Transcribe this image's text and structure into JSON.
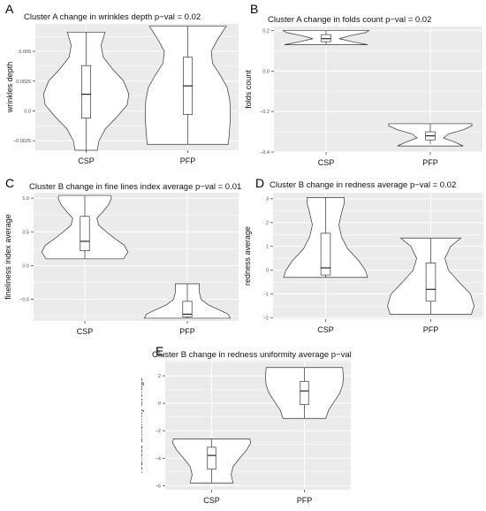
{
  "chart_data": [
    {
      "panel": "A",
      "type": "violin",
      "title": "Cluster A change in wrinkles depth  p−val = 0.02",
      "ylabel": "wrinkles depth",
      "categories": [
        "CSP",
        "PFP"
      ],
      "ylim": [
        -0.0033,
        0.0073
      ],
      "yticks": [
        -0.0025,
        0.0,
        0.0025,
        0.005
      ],
      "ytick_labels": [
        "−0.0025",
        "0.0",
        "0.0025",
        "0.005"
      ],
      "grid": true,
      "series": [
        {
          "category": "CSP",
          "box": {
            "q1": -0.0006,
            "median": 0.0014,
            "q3": 0.0038,
            "whisker_low": -0.0033,
            "whisker_high": 0.0066
          },
          "violin": [
            [
              -0.0033,
              0.26
            ],
            [
              -0.0025,
              0.3
            ],
            [
              -0.0015,
              0.45
            ],
            [
              -0.0005,
              0.72
            ],
            [
              0.0005,
              0.96
            ],
            [
              0.0014,
              1.0
            ],
            [
              0.0025,
              0.88
            ],
            [
              0.0035,
              0.62
            ],
            [
              0.0045,
              0.4
            ],
            [
              0.0055,
              0.35
            ],
            [
              0.0066,
              0.44
            ]
          ]
        },
        {
          "category": "PFP",
          "box": {
            "q1": -0.0003,
            "median": 0.0021,
            "q3": 0.0045,
            "whisker_low": -0.0028,
            "whisker_high": 0.0071
          },
          "violin": [
            [
              -0.0028,
              0.95
            ],
            [
              -0.002,
              0.97
            ],
            [
              -0.001,
              0.99
            ],
            [
              0.0,
              1.0
            ],
            [
              0.001,
              0.98
            ],
            [
              0.002,
              0.92
            ],
            [
              0.003,
              0.76
            ],
            [
              0.004,
              0.58
            ],
            [
              0.005,
              0.55
            ],
            [
              0.006,
              0.7
            ],
            [
              0.0071,
              0.9
            ]
          ]
        }
      ]
    },
    {
      "panel": "B",
      "type": "violin",
      "title": "Cluster A change in folds count  p−val = 0.02",
      "ylabel": "folds count",
      "categories": [
        "CSP",
        "PFP"
      ],
      "ylim": [
        -0.4,
        0.22
      ],
      "yticks": [
        -0.4,
        -0.2,
        0.0,
        0.2
      ],
      "ytick_labels": [
        "−0.4",
        "−0.2",
        "0.0",
        "0.2"
      ],
      "grid": true,
      "series": [
        {
          "category": "CSP",
          "box": {
            "q1": 0.145,
            "median": 0.16,
            "q3": 0.18,
            "whisker_low": 0.13,
            "whisker_high": 0.2
          },
          "violin": [
            [
              0.13,
              0.95
            ],
            [
              0.145,
              0.6
            ],
            [
              0.16,
              0.3
            ],
            [
              0.175,
              0.55
            ],
            [
              0.19,
              0.9
            ],
            [
              0.2,
              0.98
            ]
          ]
        },
        {
          "category": "PFP",
          "box": {
            "q1": -0.34,
            "median": -0.32,
            "q3": -0.3,
            "whisker_low": -0.36,
            "whisker_high": -0.26
          },
          "violin": [
            [
              -0.37,
              0.75
            ],
            [
              -0.35,
              0.55
            ],
            [
              -0.33,
              0.3
            ],
            [
              -0.31,
              0.42
            ],
            [
              -0.29,
              0.75
            ],
            [
              -0.27,
              0.95
            ],
            [
              -0.26,
              0.95
            ]
          ]
        }
      ]
    },
    {
      "panel": "C",
      "type": "violin",
      "title": "Cluster B change in fine lines index average p−val = 0.01",
      "ylabel": "fineliness index average",
      "categories": [
        "CSP",
        "PFP"
      ],
      "ylim": [
        -0.82,
        1.08
      ],
      "yticks": [
        -0.5,
        0.0,
        0.5,
        1.0
      ],
      "ytick_labels": [
        "−0.5",
        "0.0",
        "0.5",
        "1.0"
      ],
      "grid": true,
      "series": [
        {
          "category": "CSP",
          "box": {
            "q1": 0.22,
            "median": 0.36,
            "q3": 0.73,
            "whisker_low": 0.1,
            "whisker_high": 1.04
          },
          "violin": [
            [
              0.1,
              0.9
            ],
            [
              0.2,
              1.0
            ],
            [
              0.3,
              0.92
            ],
            [
              0.4,
              0.7
            ],
            [
              0.5,
              0.5
            ],
            [
              0.6,
              0.32
            ],
            [
              0.7,
              0.28
            ],
            [
              0.8,
              0.42
            ],
            [
              0.9,
              0.55
            ],
            [
              1.0,
              0.62
            ],
            [
              1.04,
              0.6
            ]
          ]
        },
        {
          "category": "PFP",
          "box": {
            "q1": -0.76,
            "median": -0.72,
            "q3": -0.53,
            "whisker_low": -0.78,
            "whisker_high": -0.27
          },
          "violin": [
            [
              -0.78,
              1.0
            ],
            [
              -0.72,
              0.95
            ],
            [
              -0.65,
              0.72
            ],
            [
              -0.58,
              0.48
            ],
            [
              -0.5,
              0.32
            ],
            [
              -0.4,
              0.28
            ],
            [
              -0.3,
              0.28
            ],
            [
              -0.27,
              0.28
            ]
          ]
        }
      ]
    },
    {
      "panel": "D",
      "type": "violin",
      "title": "Cluster B change in redness average p−val = 0.02",
      "ylabel": "redness average",
      "categories": [
        "CSP",
        "PFP"
      ],
      "ylim": [
        -2.05,
        3.25
      ],
      "yticks": [
        -2,
        -1,
        0,
        1,
        2,
        3
      ],
      "ytick_labels": [
        "−2",
        "−1",
        "0",
        "1",
        "2",
        "3"
      ],
      "grid": true,
      "series": [
        {
          "category": "CSP",
          "box": {
            "q1": -0.2,
            "median": 0.1,
            "q3": 1.55,
            "whisker_low": -0.3,
            "whisker_high": 3.05
          },
          "violin": [
            [
              -0.3,
              0.95
            ],
            [
              0.0,
              0.9
            ],
            [
              0.4,
              0.75
            ],
            [
              0.9,
              0.5
            ],
            [
              1.4,
              0.36
            ],
            [
              1.9,
              0.3
            ],
            [
              2.4,
              0.36
            ],
            [
              2.8,
              0.42
            ],
            [
              3.05,
              0.42
            ]
          ]
        },
        {
          "category": "PFP",
          "box": {
            "q1": -1.3,
            "median": -0.8,
            "q3": 0.3,
            "whisker_low": -1.85,
            "whisker_high": 1.35
          },
          "violin": [
            [
              -1.85,
              0.92
            ],
            [
              -1.5,
              0.98
            ],
            [
              -1.0,
              0.9
            ],
            [
              -0.5,
              0.64
            ],
            [
              0.0,
              0.4
            ],
            [
              0.5,
              0.32
            ],
            [
              1.0,
              0.45
            ],
            [
              1.35,
              0.68
            ]
          ]
        }
      ]
    },
    {
      "panel": "E",
      "type": "violin",
      "title": "Cluster B change in redness uniformity average p−val = 0.001",
      "ylabel": "redness uniformity average",
      "categories": [
        "CSP",
        "PFP"
      ],
      "ylim": [
        -6.3,
        3.1
      ],
      "yticks": [
        -6,
        -4,
        -2,
        0,
        2
      ],
      "ytick_labels": [
        "−6",
        "−4",
        "−2",
        "0",
        "2"
      ],
      "grid": true,
      "series": [
        {
          "category": "CSP",
          "box": {
            "q1": -4.8,
            "median": -3.8,
            "q3": -3.2,
            "whisker_low": -5.8,
            "whisker_high": -2.6
          },
          "violin": [
            [
              -5.8,
              0.55
            ],
            [
              -5.2,
              0.5
            ],
            [
              -4.6,
              0.55
            ],
            [
              -4.0,
              0.72
            ],
            [
              -3.4,
              0.9
            ],
            [
              -2.9,
              1.0
            ],
            [
              -2.6,
              0.98
            ]
          ]
        },
        {
          "category": "PFP",
          "box": {
            "q1": -0.1,
            "median": 0.9,
            "q3": 1.6,
            "whisker_low": -1.1,
            "whisker_high": 2.6
          },
          "violin": [
            [
              -1.1,
              0.55
            ],
            [
              -0.5,
              0.62
            ],
            [
              0.1,
              0.76
            ],
            [
              0.7,
              0.9
            ],
            [
              1.3,
              0.98
            ],
            [
              1.9,
              1.0
            ],
            [
              2.6,
              0.98
            ]
          ]
        }
      ]
    }
  ]
}
